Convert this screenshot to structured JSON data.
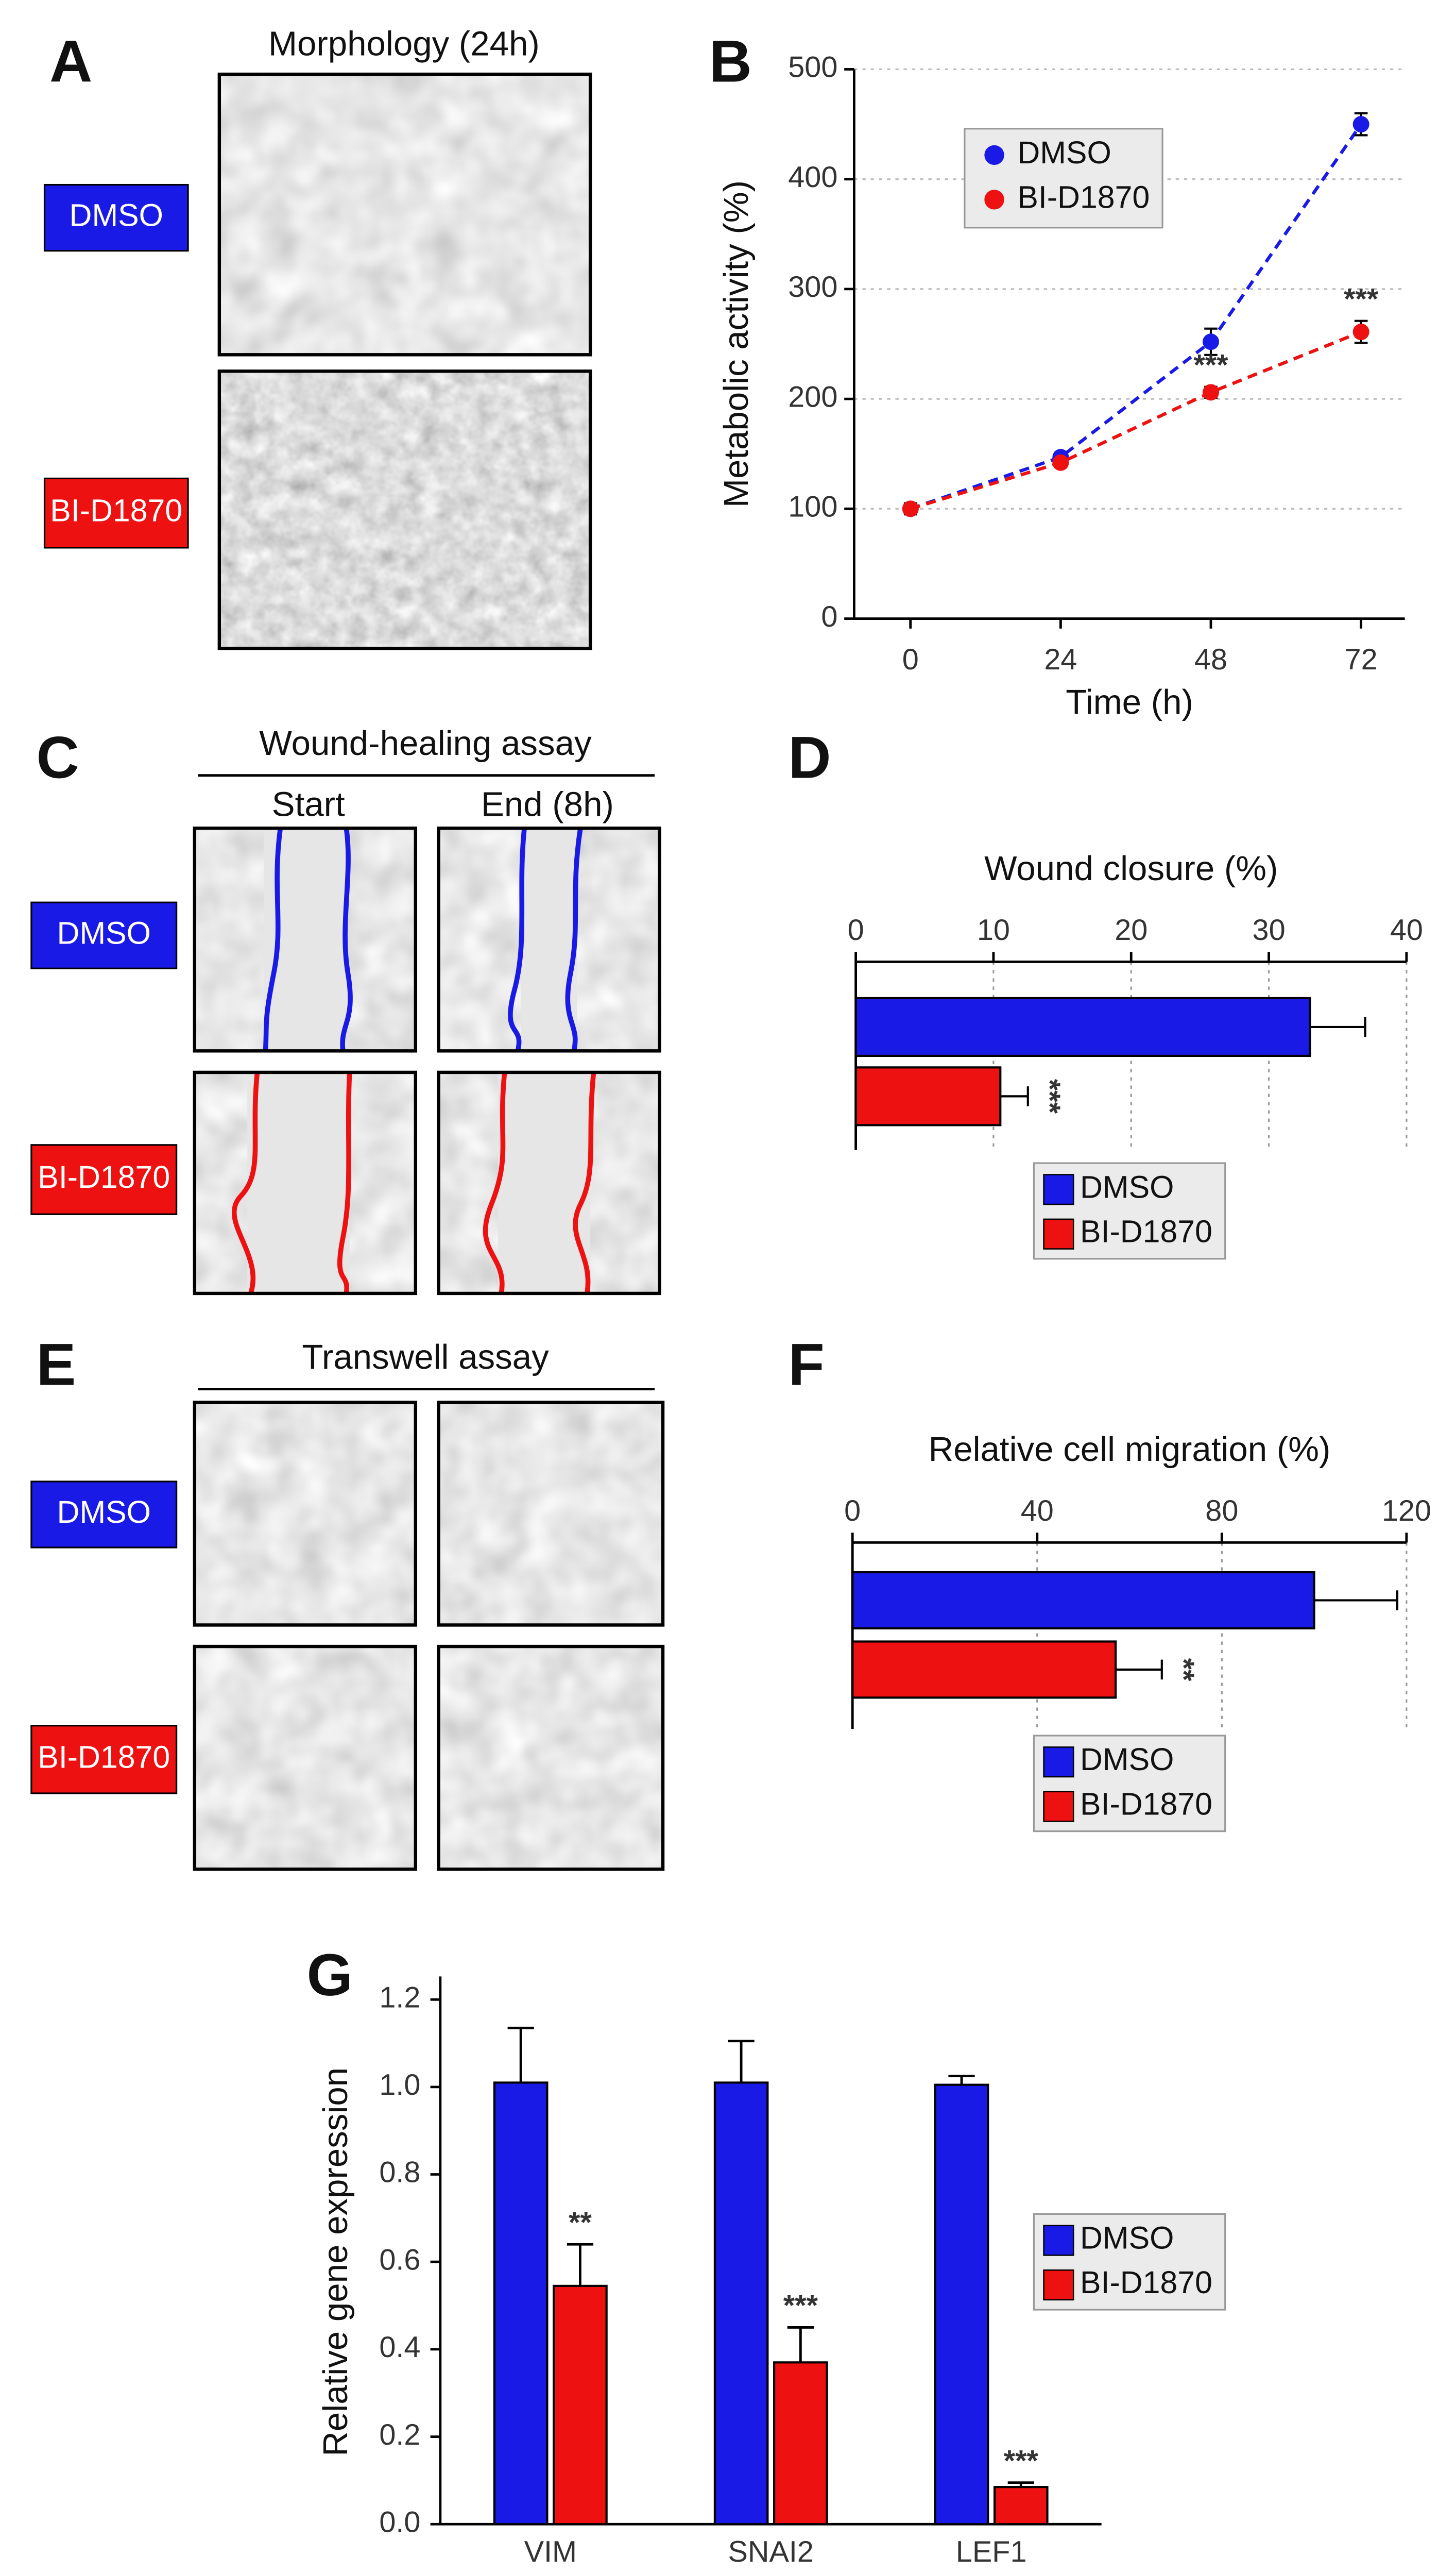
{
  "panel_labels": [
    "A",
    "B",
    "C",
    "D",
    "E",
    "F",
    "G"
  ],
  "panel_a": {
    "title": "Morphology (24h)",
    "rows": [
      "DMSO",
      "BI-D1870"
    ]
  },
  "panel_c": {
    "title": "Wound-healing assay",
    "columns": [
      "Start",
      "End (8h)"
    ],
    "rows": [
      "DMSO",
      "BI-D1870"
    ]
  },
  "panel_e": {
    "title": "Transwell assay",
    "rows": [
      "DMSO",
      "BI-D1870"
    ]
  },
  "chart_data": [
    {
      "type": "line",
      "xlabel": "Time (h)",
      "ylabel": "Metabolic activity (%)",
      "x": [
        0,
        24,
        48,
        72
      ],
      "xlim": [
        -9,
        79
      ],
      "xticks": [
        0,
        24,
        48,
        72
      ],
      "ylim": [
        0,
        500
      ],
      "yticks": [
        0,
        100,
        200,
        300,
        400,
        500
      ],
      "grid": true,
      "legend": "top-left",
      "series": [
        {
          "name": "DMSO",
          "color": "#1a1ae6",
          "values": [
            100,
            147,
            252,
            450
          ],
          "errors": [
            5,
            4,
            12,
            10
          ],
          "significance": [
            null,
            null,
            null,
            null
          ]
        },
        {
          "name": "BI-D1870",
          "color": "#ee1111",
          "values": [
            100,
            142,
            206,
            261
          ],
          "errors": [
            5,
            4,
            5,
            10
          ],
          "significance": [
            null,
            null,
            "***",
            "***"
          ]
        }
      ]
    },
    {
      "type": "hbar",
      "title": "Wound closure (%)",
      "xlim": [
        0,
        40
      ],
      "xticks": [
        0,
        10,
        20,
        30,
        40
      ],
      "grid": true,
      "legend": "bottom",
      "series": [
        {
          "name": "DMSO",
          "color": "#1a1ae6",
          "values": [
            33
          ],
          "errors": [
            4
          ],
          "significance": [
            null
          ]
        },
        {
          "name": "BI-D1870",
          "color": "#ee1111",
          "values": [
            10.5
          ],
          "errors": [
            2
          ],
          "significance": [
            "***"
          ]
        }
      ]
    },
    {
      "type": "hbar",
      "title": "Relative cell migration (%)",
      "xlim": [
        0,
        120
      ],
      "xticks": [
        0,
        40,
        80,
        120
      ],
      "grid": true,
      "legend": "bottom",
      "series": [
        {
          "name": "DMSO",
          "color": "#1a1ae6",
          "values": [
            100
          ],
          "errors": [
            18
          ],
          "significance": [
            null
          ]
        },
        {
          "name": "BI-D1870",
          "color": "#ee1111",
          "values": [
            57
          ],
          "errors": [
            10
          ],
          "significance": [
            "**"
          ]
        }
      ]
    },
    {
      "type": "bar",
      "ylabel": "Relative gene expression",
      "categories": [
        "VIM",
        "SNAI2",
        "LEF1"
      ],
      "ylim": [
        0,
        1.2
      ],
      "yticks": [
        {
          "value": 0,
          "label": "0.0"
        },
        0.2,
        0.4,
        0.6,
        0.8,
        {
          "value": 1,
          "label": "1.0"
        },
        1.2
      ],
      "legend": "right",
      "series": [
        {
          "name": "DMSO",
          "color": "#1a1ae6",
          "values": [
            1.01,
            1.01,
            1.005
          ],
          "errors": [
            0.125,
            0.095,
            0.02
          ],
          "significance": [
            null,
            null,
            null
          ]
        },
        {
          "name": "BI-D1870",
          "color": "#ee1111",
          "values": [
            0.545,
            0.37,
            0.085
          ],
          "errors": [
            0.095,
            0.08,
            0.01
          ],
          "significance": [
            "**",
            "***",
            "***"
          ]
        }
      ]
    }
  ]
}
